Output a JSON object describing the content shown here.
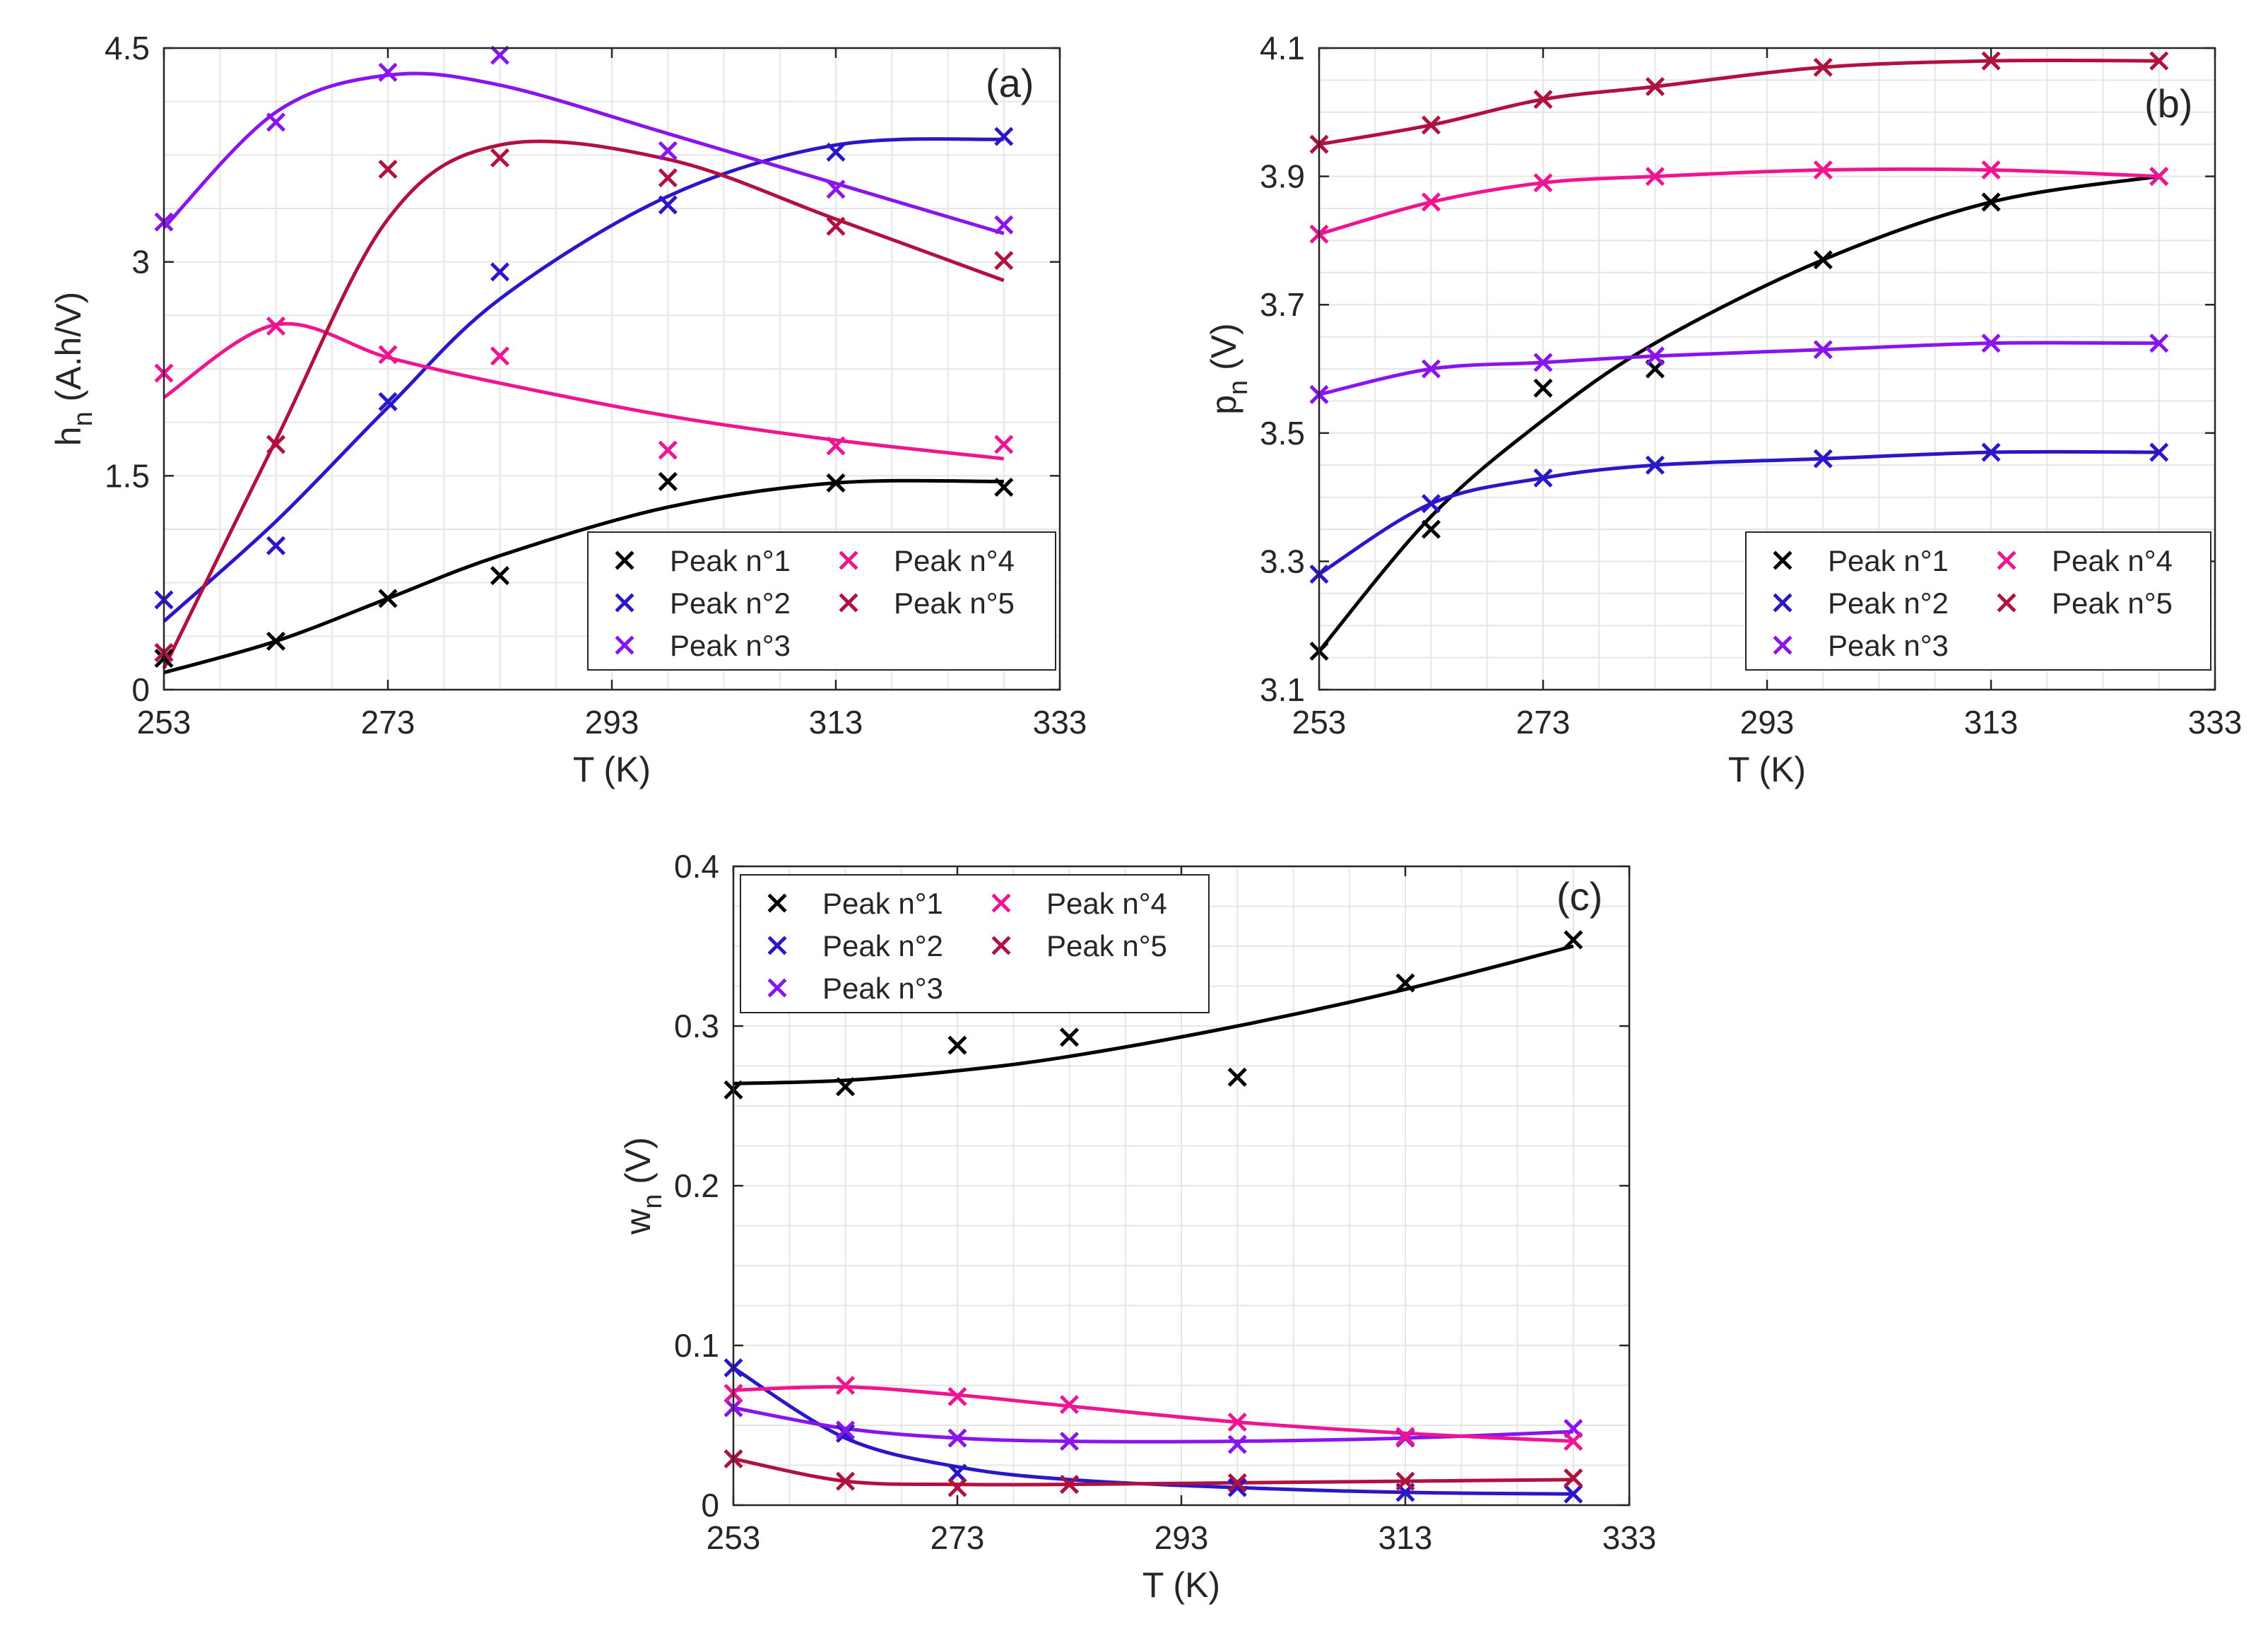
{
  "chart_data": [
    {
      "type": "scatter",
      "panel": "(a)",
      "xlabel": "T (K)",
      "ylabel": "h",
      "ylabel_sub": "n",
      "ylabel_suffix": " (A.h/V)",
      "xlim": [
        253,
        333
      ],
      "ylim": [
        0,
        4.5
      ],
      "xticks": [
        "253",
        "273",
        "293",
        "313",
        "333"
      ],
      "yticks": [
        "0",
        "1.5",
        "3",
        "4.5"
      ],
      "ytick_values": [
        0,
        1.5,
        3,
        4.5
      ],
      "grid": true,
      "legend": "bottom-right",
      "x": [
        253,
        263,
        273,
        283,
        298,
        313,
        328
      ],
      "series": [
        {
          "name": "Peak n°1",
          "color": "#000000",
          "values": [
            0.22,
            0.34,
            0.64,
            0.8,
            1.46,
            1.45,
            1.42
          ],
          "fit": [
            0.12,
            0.34,
            0.64,
            0.94,
            1.28,
            1.45,
            1.46
          ]
        },
        {
          "name": "Peak n°2",
          "color": "#2a17c8",
          "values": [
            0.63,
            1.01,
            2.02,
            2.93,
            3.4,
            3.77,
            3.88
          ],
          "fit": [
            0.48,
            1.18,
            1.98,
            2.74,
            3.46,
            3.82,
            3.86
          ]
        },
        {
          "name": "Peak n°3",
          "color": "#8a14ee",
          "values": [
            3.28,
            3.98,
            4.33,
            4.45,
            3.78,
            3.51,
            3.26
          ],
          "fit": [
            3.24,
            4.05,
            4.31,
            4.24,
            3.9,
            3.55,
            3.2
          ]
        },
        {
          "name": "Peak n°4",
          "color": "#ef1591",
          "values": [
            2.22,
            2.55,
            2.35,
            2.34,
            1.68,
            1.71,
            1.72
          ],
          "fit": [
            2.05,
            2.56,
            2.33,
            2.15,
            1.92,
            1.75,
            1.62
          ]
        },
        {
          "name": "Peak n°5",
          "color": "#b0113e",
          "values": [
            0.26,
            1.72,
            3.65,
            3.73,
            3.59,
            3.25,
            3.01
          ],
          "fit": [
            0.15,
            1.75,
            3.3,
            3.82,
            3.72,
            3.3,
            2.87
          ]
        }
      ]
    },
    {
      "type": "scatter",
      "panel": "(b)",
      "xlabel": "T (K)",
      "ylabel": "p",
      "ylabel_sub": "n",
      "ylabel_suffix": " (V)",
      "xlim": [
        253,
        333
      ],
      "ylim": [
        3.1,
        4.1
      ],
      "xticks": [
        "253",
        "273",
        "293",
        "313",
        "333"
      ],
      "yticks": [
        "3.1",
        "3.3",
        "3.5",
        "3.7",
        "3.9",
        "4.1"
      ],
      "ytick_values": [
        3.1,
        3.3,
        3.5,
        3.7,
        3.9,
        4.1
      ],
      "grid": true,
      "legend": "bottom-right",
      "x": [
        253,
        263,
        273,
        283,
        298,
        313,
        328
      ],
      "series": [
        {
          "name": "Peak n°1",
          "color": "#000000",
          "values": [
            3.16,
            3.35,
            3.57,
            3.6,
            3.77,
            3.86,
            3.9
          ],
          "fit": [
            3.16,
            3.37,
            3.52,
            3.64,
            3.77,
            3.86,
            3.9
          ]
        },
        {
          "name": "Peak n°2",
          "color": "#2a17c8",
          "values": [
            3.28,
            3.39,
            3.43,
            3.45,
            3.46,
            3.47,
            3.47
          ],
          "fit": [
            3.28,
            3.39,
            3.43,
            3.45,
            3.46,
            3.47,
            3.47
          ]
        },
        {
          "name": "Peak n°3",
          "color": "#8a14ee",
          "values": [
            3.56,
            3.6,
            3.61,
            3.62,
            3.63,
            3.64,
            3.64
          ],
          "fit": [
            3.56,
            3.6,
            3.61,
            3.62,
            3.63,
            3.64,
            3.64
          ]
        },
        {
          "name": "Peak n°4",
          "color": "#ef1591",
          "values": [
            3.81,
            3.86,
            3.89,
            3.9,
            3.91,
            3.91,
            3.9
          ],
          "fit": [
            3.81,
            3.86,
            3.89,
            3.9,
            3.91,
            3.91,
            3.9
          ]
        },
        {
          "name": "Peak n°5",
          "color": "#b0113e",
          "values": [
            3.95,
            3.98,
            4.02,
            4.04,
            4.07,
            4.08,
            4.08
          ],
          "fit": [
            3.95,
            3.98,
            4.02,
            4.04,
            4.07,
            4.08,
            4.08
          ]
        }
      ]
    },
    {
      "type": "scatter",
      "panel": "(c)",
      "xlabel": "T (K)",
      "ylabel": "w",
      "ylabel_sub": "n",
      "ylabel_suffix": " (V)",
      "xlim": [
        253,
        333
      ],
      "ylim": [
        0,
        0.4
      ],
      "xticks": [
        "253",
        "273",
        "293",
        "313",
        "333"
      ],
      "yticks": [
        "0",
        "0.1",
        "0.2",
        "0.3",
        "0.4"
      ],
      "ytick_values": [
        0,
        0.1,
        0.2,
        0.3,
        0.4
      ],
      "grid": true,
      "legend": "top-left",
      "x": [
        253,
        263,
        273,
        283,
        298,
        313,
        328
      ],
      "series": [
        {
          "name": "Peak n°1",
          "color": "#000000",
          "values": [
            0.26,
            0.262,
            0.288,
            0.293,
            0.268,
            0.327,
            0.354
          ],
          "fit": [
            0.264,
            0.266,
            0.272,
            0.281,
            0.3,
            0.323,
            0.35
          ]
        },
        {
          "name": "Peak n°2",
          "color": "#2a17c8",
          "values": [
            0.086,
            0.045,
            0.02,
            0.013,
            0.011,
            0.008,
            0.007
          ],
          "fit": [
            0.086,
            0.042,
            0.024,
            0.016,
            0.011,
            0.008,
            0.007
          ]
        },
        {
          "name": "Peak n°3",
          "color": "#8a14ee",
          "values": [
            0.061,
            0.047,
            0.042,
            0.04,
            0.038,
            0.042,
            0.048
          ],
          "fit": [
            0.061,
            0.048,
            0.042,
            0.04,
            0.04,
            0.042,
            0.046
          ]
        },
        {
          "name": "Peak n°4",
          "color": "#ef1591",
          "values": [
            0.07,
            0.075,
            0.068,
            0.063,
            0.052,
            0.043,
            0.04
          ],
          "fit": [
            0.072,
            0.074,
            0.069,
            0.062,
            0.052,
            0.045,
            0.04
          ]
        },
        {
          "name": "Peak n°5",
          "color": "#b0113e",
          "values": [
            0.029,
            0.015,
            0.011,
            0.013,
            0.014,
            0.015,
            0.017
          ],
          "fit": [
            0.029,
            0.015,
            0.013,
            0.013,
            0.014,
            0.015,
            0.016
          ]
        }
      ]
    }
  ]
}
